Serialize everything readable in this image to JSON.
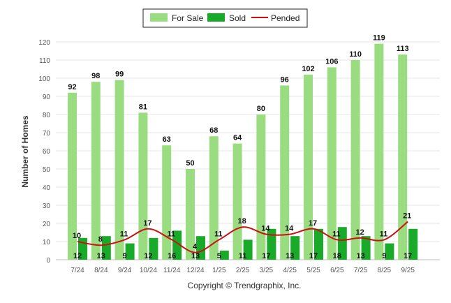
{
  "chart_data": {
    "type": "bar",
    "title": "",
    "xlabel": "",
    "ylabel": "Number of Homes",
    "ylim": [
      0,
      120
    ],
    "yticks": [
      0,
      10,
      20,
      30,
      40,
      50,
      60,
      70,
      80,
      90,
      100,
      110,
      120
    ],
    "grid": true,
    "legend_position": "top-center",
    "categories": [
      "7/24",
      "8/24",
      "9/24",
      "10/24",
      "11/24",
      "12/24",
      "1/25",
      "2/25",
      "3/25",
      "4/25",
      "5/25",
      "6/25",
      "7/25",
      "8/25",
      "9/25"
    ],
    "series": [
      {
        "name": "For Sale",
        "type": "bar",
        "color": "#99dd80",
        "values": [
          92,
          98,
          99,
          81,
          63,
          50,
          68,
          64,
          80,
          96,
          102,
          106,
          110,
          119,
          113
        ]
      },
      {
        "name": "Sold",
        "type": "bar",
        "color": "#1aaa2a",
        "values": [
          12,
          13,
          9,
          12,
          16,
          13,
          5,
          11,
          17,
          13,
          17,
          18,
          13,
          9,
          17
        ]
      },
      {
        "name": "Pended",
        "type": "line",
        "color": "#cc1111",
        "values": [
          10,
          8,
          11,
          17,
          11,
          4,
          11,
          18,
          14,
          14,
          17,
          11,
          12,
          11,
          21
        ]
      }
    ]
  },
  "copyright": "Copyright © Trendgraphix, Inc."
}
